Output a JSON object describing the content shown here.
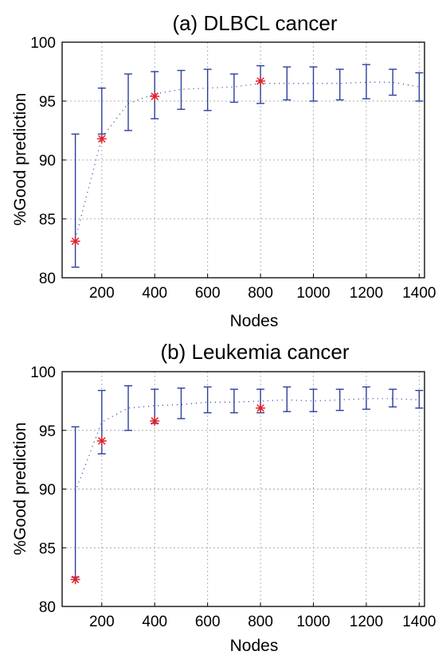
{
  "colors": {
    "errorbar": "#2b3f9e",
    "marker": "#e0202a",
    "grid": "#a8a8a8"
  },
  "chart_data": [
    {
      "type": "errorbar",
      "title": "(a) DLBCL cancer",
      "xlabel": "Nodes",
      "ylabel": "%Good prediction",
      "xlim": [
        50,
        1420
      ],
      "ylim": [
        80,
        100
      ],
      "xticks": [
        200,
        400,
        600,
        800,
        1000,
        1200,
        1400
      ],
      "yticks": [
        80,
        85,
        90,
        95,
        100
      ],
      "grid": true,
      "x": [
        100,
        200,
        300,
        400,
        500,
        600,
        700,
        800,
        900,
        1000,
        1100,
        1200,
        1300,
        1400
      ],
      "mean": [
        83.3,
        91.9,
        94.8,
        95.6,
        96.0,
        96.1,
        96.2,
        96.5,
        96.5,
        96.5,
        96.5,
        96.6,
        96.6,
        96.2
      ],
      "lower": [
        80.9,
        92.2,
        92.5,
        93.5,
        94.3,
        94.2,
        94.9,
        94.8,
        95.1,
        95.0,
        95.1,
        95.2,
        95.5,
        95.0
      ],
      "upper": [
        92.2,
        96.1,
        97.3,
        97.5,
        97.6,
        97.7,
        97.3,
        98.0,
        97.9,
        97.9,
        97.7,
        98.1,
        97.7,
        97.4
      ],
      "markers": [
        {
          "x": 100,
          "y": 83.1
        },
        {
          "x": 200,
          "y": 91.8
        },
        {
          "x": 400,
          "y": 95.4
        },
        {
          "x": 800,
          "y": 96.7
        }
      ]
    },
    {
      "type": "errorbar",
      "title": "(b) Leukemia cancer",
      "xlabel": "Nodes",
      "ylabel": "%Good prediction",
      "xlim": [
        50,
        1420
      ],
      "ylim": [
        80,
        100
      ],
      "xticks": [
        200,
        400,
        600,
        800,
        1000,
        1200,
        1400
      ],
      "yticks": [
        80,
        85,
        90,
        95,
        100
      ],
      "grid": true,
      "x": [
        100,
        200,
        300,
        400,
        500,
        600,
        700,
        800,
        900,
        1000,
        1100,
        1200,
        1300,
        1400
      ],
      "mean": [
        89.8,
        95.7,
        96.9,
        97.1,
        97.2,
        97.4,
        97.4,
        97.5,
        97.6,
        97.5,
        97.6,
        97.7,
        97.7,
        97.6
      ],
      "lower": [
        82.5,
        93.0,
        95.0,
        95.6,
        96.0,
        96.5,
        96.5,
        96.5,
        96.6,
        96.6,
        96.7,
        96.8,
        97.0,
        96.9
      ],
      "upper": [
        95.3,
        98.4,
        98.8,
        98.5,
        98.6,
        98.7,
        98.5,
        98.5,
        98.7,
        98.5,
        98.5,
        98.7,
        98.5,
        98.4
      ],
      "markers": [
        {
          "x": 100,
          "y": 82.3
        },
        {
          "x": 200,
          "y": 94.1
        },
        {
          "x": 400,
          "y": 95.8
        },
        {
          "x": 800,
          "y": 96.9
        }
      ]
    }
  ]
}
